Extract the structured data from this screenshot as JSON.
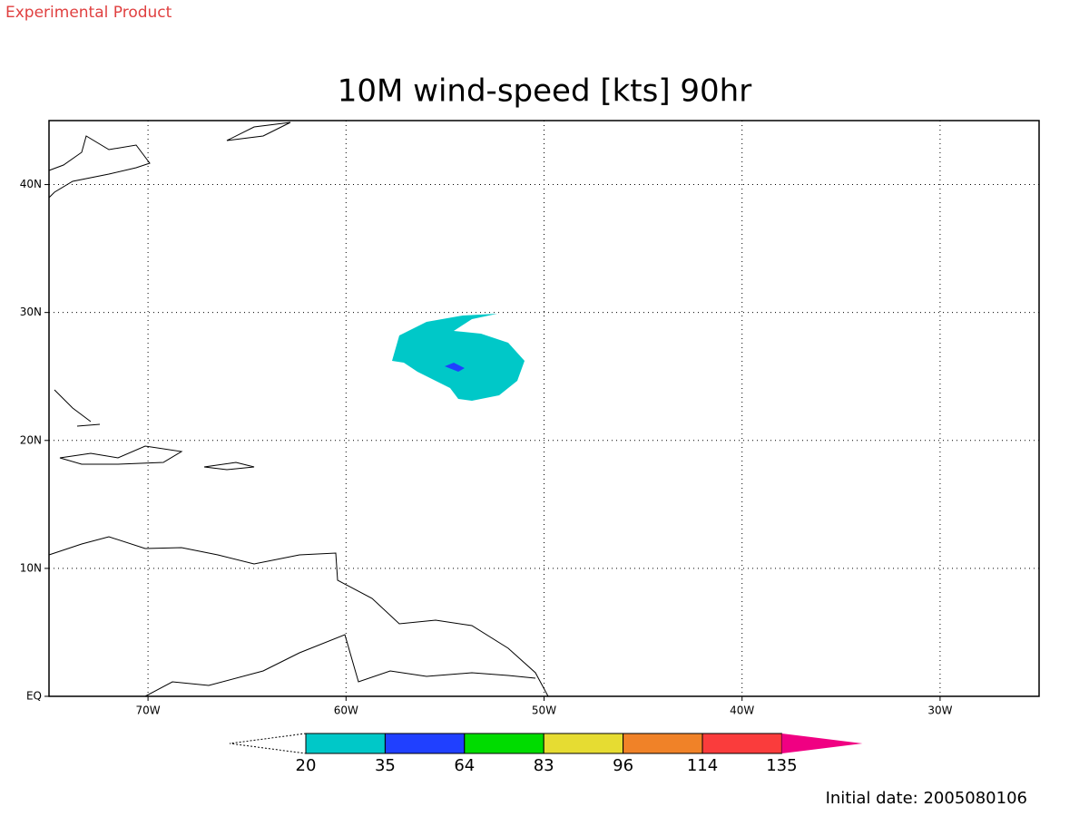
{
  "header": {
    "stamp": "Experimental Product",
    "title": "10M wind-speed [kts] 90hr",
    "footer": "Initial date: 2005080106"
  },
  "map": {
    "xlim": [
      -75,
      -25
    ],
    "ylim": [
      0,
      45
    ],
    "grid": true,
    "xticks": [
      {
        "value": -70,
        "label": "70W"
      },
      {
        "value": -60,
        "label": "60W"
      },
      {
        "value": -50,
        "label": "50W"
      },
      {
        "value": -40,
        "label": "40W"
      },
      {
        "value": -30,
        "label": "30W"
      }
    ],
    "yticks": [
      {
        "value": 0,
        "label": "EQ"
      },
      {
        "value": 10,
        "label": "10N"
      },
      {
        "value": 20,
        "label": "20N"
      },
      {
        "value": 30,
        "label": "30N"
      },
      {
        "value": 40,
        "label": "40N"
      }
    ]
  },
  "colorbar": {
    "levels": [
      20,
      35,
      64,
      83,
      96,
      114,
      135
    ],
    "colors": [
      "#00c8c8",
      "#2040ff",
      "#00dc00",
      "#e6dc32",
      "#f08228",
      "#fa3c3c",
      "#f00082"
    ]
  }
}
